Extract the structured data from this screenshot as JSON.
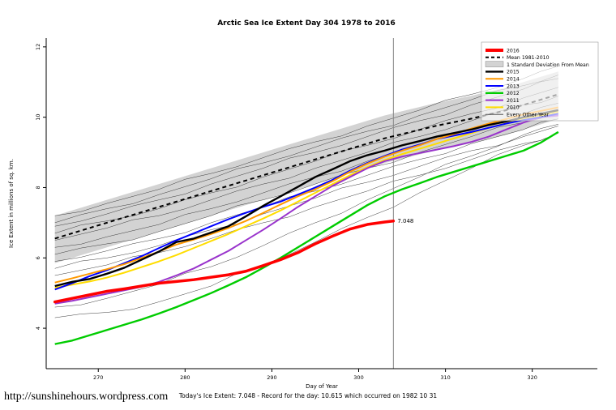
{
  "footer": {
    "url": "http://sunshinehours.wordpress.com",
    "note": "Today's Ice Extent: 7.048  - Record for the day: 10.615 which occurred on 1982 10 31"
  },
  "chart_data": {
    "type": "line",
    "title": "Arctic Sea Ice Extent Day 304 1978 to 2016",
    "xlabel": "Day of Year",
    "ylabel": "Ice Extent in millions of sq. km.",
    "x_ticks": [
      270,
      280,
      290,
      300,
      310,
      320
    ],
    "y_ticks": [
      4,
      6,
      8,
      10,
      12
    ],
    "xlim": [
      264,
      327.5
    ],
    "ylim": [
      2.85,
      12.25
    ],
    "vline_x": 304,
    "annotation": {
      "text": "7.048",
      "x": 304,
      "y": 7.048,
      "color": "#FF0000"
    },
    "x": [
      265,
      267,
      269,
      271,
      273,
      275,
      277,
      279,
      281,
      283,
      285,
      287,
      289,
      291,
      293,
      295,
      297,
      299,
      301,
      303,
      305,
      307,
      309,
      311,
      313,
      315,
      317,
      319,
      321,
      323
    ],
    "band": {
      "label": "1 Standard Deviation From Mean",
      "color": "#D3D3D3",
      "upper": [
        7.2,
        7.35,
        7.5,
        7.65,
        7.8,
        7.95,
        8.1,
        8.25,
        8.4,
        8.55,
        8.7,
        8.85,
        9.0,
        9.15,
        9.3,
        9.45,
        9.6,
        9.75,
        9.9,
        10.05,
        10.17,
        10.29,
        10.41,
        10.51,
        10.61,
        10.73,
        10.85,
        11.0,
        11.15,
        11.3
      ],
      "lower": [
        5.85,
        6.0,
        6.15,
        6.3,
        6.45,
        6.6,
        6.75,
        6.9,
        7.05,
        7.2,
        7.35,
        7.5,
        7.65,
        7.8,
        7.95,
        8.1,
        8.25,
        8.4,
        8.55,
        8.7,
        8.82,
        8.94,
        9.06,
        9.16,
        9.26,
        9.38,
        9.5,
        9.65,
        9.8,
        9.95
      ]
    },
    "mean": {
      "label": "Mean 1981-2010",
      "color": "#000000",
      "dash": true,
      "values": [
        6.55,
        6.7,
        6.85,
        7.0,
        7.15,
        7.3,
        7.45,
        7.6,
        7.75,
        7.9,
        8.05,
        8.2,
        8.35,
        8.5,
        8.65,
        8.8,
        8.95,
        9.1,
        9.25,
        9.4,
        9.52,
        9.64,
        9.76,
        9.86,
        9.96,
        10.08,
        10.2,
        10.35,
        10.5,
        10.65
      ]
    },
    "series": [
      {
        "name": "2010",
        "color": "#FFDD00",
        "width": 2,
        "values": [
          5.15,
          5.24,
          5.33,
          5.44,
          5.58,
          5.74,
          5.9,
          6.08,
          6.28,
          6.48,
          6.68,
          6.9,
          7.12,
          7.35,
          7.6,
          7.85,
          8.1,
          8.35,
          8.58,
          8.78,
          8.95,
          9.1,
          9.25,
          9.4,
          9.55,
          9.7,
          9.83,
          9.95,
          10.05,
          10.15
        ]
      },
      {
        "name": "2011",
        "color": "#9933CC",
        "width": 2,
        "values": [
          4.7,
          4.78,
          4.88,
          4.98,
          5.08,
          5.18,
          5.32,
          5.5,
          5.7,
          5.95,
          6.2,
          6.5,
          6.8,
          7.12,
          7.45,
          7.75,
          8.05,
          8.3,
          8.55,
          8.75,
          8.88,
          8.98,
          9.08,
          9.18,
          9.3,
          9.45,
          9.65,
          9.85,
          10.0,
          10.05
        ]
      },
      {
        "name": "2012",
        "color": "#00CC00",
        "width": 2.4,
        "values": [
          3.55,
          3.65,
          3.8,
          3.95,
          4.1,
          4.25,
          4.42,
          4.6,
          4.8,
          5.0,
          5.22,
          5.45,
          5.72,
          6.0,
          6.3,
          6.6,
          6.9,
          7.2,
          7.5,
          7.75,
          7.95,
          8.12,
          8.3,
          8.45,
          8.6,
          8.75,
          8.9,
          9.05,
          9.28,
          9.58
        ]
      },
      {
        "name": "2013",
        "color": "#0000FF",
        "width": 2,
        "values": [
          5.1,
          5.28,
          5.48,
          5.65,
          5.85,
          6.05,
          6.28,
          6.5,
          6.7,
          6.9,
          7.1,
          7.28,
          7.45,
          7.6,
          7.8,
          8.0,
          8.22,
          8.48,
          8.7,
          8.9,
          9.08,
          9.22,
          9.38,
          9.48,
          9.58,
          9.7,
          9.82,
          9.92,
          10.0,
          10.1
        ]
      },
      {
        "name": "2014",
        "color": "#FF9900",
        "width": 2,
        "values": [
          5.3,
          5.42,
          5.55,
          5.68,
          5.82,
          6.0,
          6.18,
          6.38,
          6.52,
          6.68,
          6.85,
          7.05,
          7.28,
          7.52,
          7.75,
          7.95,
          8.18,
          8.45,
          8.68,
          8.88,
          9.05,
          9.2,
          9.38,
          9.52,
          9.68,
          9.82,
          9.95,
          10.08,
          10.18,
          10.28
        ]
      },
      {
        "name": "2015",
        "color": "#000000",
        "width": 2.4,
        "values": [
          5.2,
          5.32,
          5.4,
          5.55,
          5.72,
          5.95,
          6.18,
          6.45,
          6.55,
          6.72,
          6.9,
          7.18,
          7.48,
          7.75,
          8.02,
          8.3,
          8.52,
          8.75,
          8.92,
          9.05,
          9.2,
          9.32,
          9.45,
          9.55,
          9.65,
          9.78,
          9.88,
          10.0,
          10.1,
          10.2
        ]
      }
    ],
    "series_2016": {
      "name": "2016",
      "color": "#FF0000",
      "width": 3.5,
      "x": [
        265,
        267,
        269,
        271,
        273,
        275,
        277,
        279,
        281,
        283,
        285,
        287,
        289,
        291,
        293,
        295,
        297,
        299,
        301,
        303,
        304
      ],
      "values": [
        4.75,
        4.85,
        4.95,
        5.05,
        5.12,
        5.2,
        5.28,
        5.33,
        5.38,
        5.45,
        5.52,
        5.62,
        5.78,
        5.95,
        6.15,
        6.4,
        6.62,
        6.82,
        6.95,
        7.02,
        7.048
      ]
    },
    "other_years": {
      "label": "Every Other Year",
      "color": "#3a3a3a",
      "x": [
        265,
        271,
        277,
        283,
        289,
        295,
        301,
        307,
        313,
        319,
        323
      ],
      "lines": [
        [
          7.2,
          7.55,
          7.95,
          8.4,
          8.85,
          9.3,
          9.75,
          10.2,
          10.65,
          11.1,
          11.45
        ],
        [
          7.0,
          7.4,
          7.8,
          8.25,
          8.7,
          9.15,
          9.6,
          10.05,
          10.5,
          10.9,
          11.2
        ],
        [
          6.9,
          7.25,
          7.65,
          8.1,
          8.55,
          9.0,
          9.45,
          9.9,
          10.35,
          10.8,
          11.1
        ],
        [
          6.7,
          7.05,
          7.4,
          7.85,
          8.3,
          8.75,
          9.2,
          9.65,
          10.1,
          10.55,
          10.85
        ],
        [
          6.5,
          6.85,
          7.2,
          7.65,
          8.1,
          8.55,
          9.0,
          9.45,
          9.9,
          10.35,
          10.6
        ],
        [
          6.3,
          6.6,
          6.95,
          7.4,
          7.85,
          8.3,
          8.75,
          9.2,
          9.65,
          10.1,
          10.4
        ],
        [
          6.1,
          6.4,
          6.75,
          7.2,
          7.65,
          8.1,
          8.55,
          9.0,
          9.45,
          9.85,
          10.15
        ],
        [
          5.9,
          6.2,
          6.55,
          7.0,
          7.45,
          7.9,
          8.35,
          8.8,
          9.25,
          9.65,
          9.95
        ],
        [
          5.7,
          6.0,
          6.35,
          6.8,
          7.25,
          7.7,
          8.15,
          8.6,
          9.05,
          9.45,
          9.75
        ],
        [
          5.5,
          5.8,
          6.15,
          6.55,
          7.0,
          7.45,
          7.9,
          8.35,
          8.8,
          9.25,
          9.55
        ],
        [
          4.6,
          4.85,
          5.25,
          5.75,
          6.35,
          7.0,
          7.65,
          8.3,
          8.9,
          9.5,
          9.8
        ],
        [
          4.3,
          4.45,
          4.75,
          5.2,
          5.8,
          6.45,
          7.15,
          7.85,
          8.55,
          9.2,
          9.55
        ]
      ]
    },
    "legend": [
      {
        "label": "2016",
        "color": "#FF0000",
        "lw": 4,
        "type": "line"
      },
      {
        "label": "Mean 1981-2010",
        "color": "#000000",
        "lw": 2,
        "type": "line",
        "dash": true
      },
      {
        "label": "1 Standard Deviation From Mean",
        "color": "#D3D3D3",
        "type": "box"
      },
      {
        "label": "2015",
        "color": "#000000",
        "lw": 2.4,
        "type": "line"
      },
      {
        "label": "2014",
        "color": "#FF9900",
        "lw": 2,
        "type": "line"
      },
      {
        "label": "2013",
        "color": "#0000FF",
        "lw": 2,
        "type": "line"
      },
      {
        "label": "2012",
        "color": "#00CC00",
        "lw": 2.4,
        "type": "line"
      },
      {
        "label": "2011",
        "color": "#9933CC",
        "lw": 2,
        "type": "line"
      },
      {
        "label": "2010",
        "color": "#FFDD00",
        "lw": 2,
        "type": "line"
      },
      {
        "label": "Every Other Year",
        "color": "#3a3a3a",
        "lw": 0.8,
        "type": "line"
      }
    ]
  }
}
